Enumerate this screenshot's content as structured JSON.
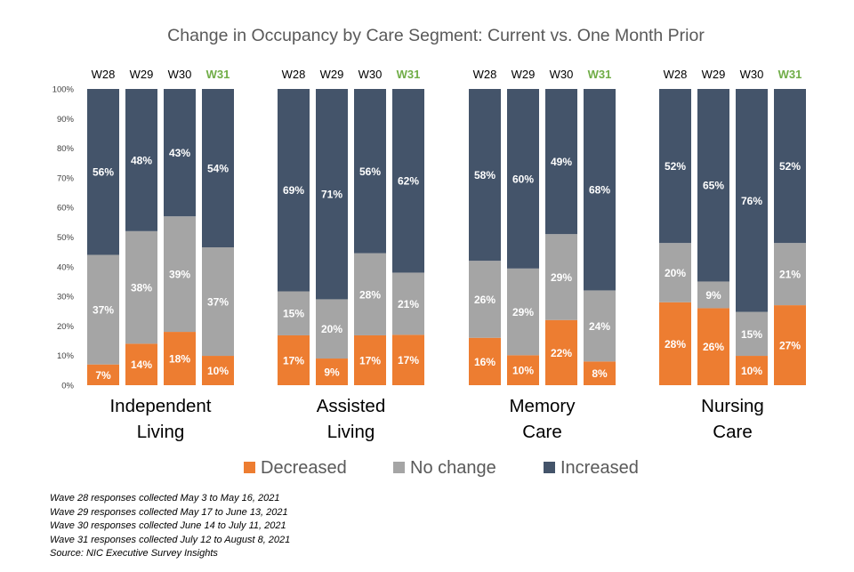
{
  "chart_data": {
    "type": "bar",
    "stacked": true,
    "title": "Change in Occupancy by Care Segment: Current vs. One Month Prior",
    "ylim": [
      0,
      100
    ],
    "y_ticks": [
      "0%",
      "10%",
      "20%",
      "30%",
      "40%",
      "50%",
      "60%",
      "70%",
      "80%",
      "90%",
      "100%"
    ],
    "legend_position": "bottom",
    "grid": false,
    "colors": {
      "decreased": "#ED7D31",
      "no_change": "#A5A5A5",
      "increased": "#44546A",
      "highlight_wave": "#70AD47"
    },
    "series_names": [
      "Decreased",
      "No change",
      "Increased"
    ],
    "groups": [
      {
        "label_lines": [
          "Independent",
          "Living"
        ],
        "bars": [
          {
            "wave": "W28",
            "values": [
              7,
              37,
              56
            ],
            "highlight": false
          },
          {
            "wave": "W29",
            "values": [
              14,
              38,
              48
            ],
            "highlight": false
          },
          {
            "wave": "W30",
            "values": [
              18,
              39,
              43
            ],
            "highlight": false
          },
          {
            "wave": "W31",
            "values": [
              10,
              37,
              54
            ],
            "highlight": true
          }
        ]
      },
      {
        "label_lines": [
          "Assisted",
          "Living"
        ],
        "bars": [
          {
            "wave": "W28",
            "values": [
              17,
              15,
              69
            ],
            "highlight": false
          },
          {
            "wave": "W29",
            "values": [
              9,
              20,
              71
            ],
            "highlight": false
          },
          {
            "wave": "W30",
            "values": [
              17,
              28,
              56
            ],
            "highlight": false
          },
          {
            "wave": "W31",
            "values": [
              17,
              21,
              62
            ],
            "highlight": true
          }
        ]
      },
      {
        "label_lines": [
          "Memory",
          "Care"
        ],
        "bars": [
          {
            "wave": "W28",
            "values": [
              16,
              26,
              58
            ],
            "highlight": false
          },
          {
            "wave": "W29",
            "values": [
              10,
              29,
              60
            ],
            "highlight": false
          },
          {
            "wave": "W30",
            "values": [
              22,
              29,
              49
            ],
            "highlight": false
          },
          {
            "wave": "W31",
            "values": [
              8,
              24,
              68
            ],
            "highlight": true
          }
        ]
      },
      {
        "label_lines": [
          "Nursing",
          "Care"
        ],
        "bars": [
          {
            "wave": "W28",
            "values": [
              28,
              20,
              52
            ],
            "highlight": false
          },
          {
            "wave": "W29",
            "values": [
              26,
              9,
              65
            ],
            "highlight": false
          },
          {
            "wave": "W30",
            "values": [
              10,
              15,
              76
            ],
            "highlight": false
          },
          {
            "wave": "W31",
            "values": [
              27,
              21,
              52
            ],
            "highlight": true
          }
        ]
      }
    ]
  },
  "footnotes": [
    "Wave 28 responses collected May 3 to May 16, 2021",
    "Wave 29 responses collected May 17 to June 13, 2021",
    "Wave 30 responses collected June 14 to July 11, 2021",
    "Wave 31 responses collected July 12 to August 8, 2021",
    "Source: NIC Executive Survey Insights"
  ]
}
